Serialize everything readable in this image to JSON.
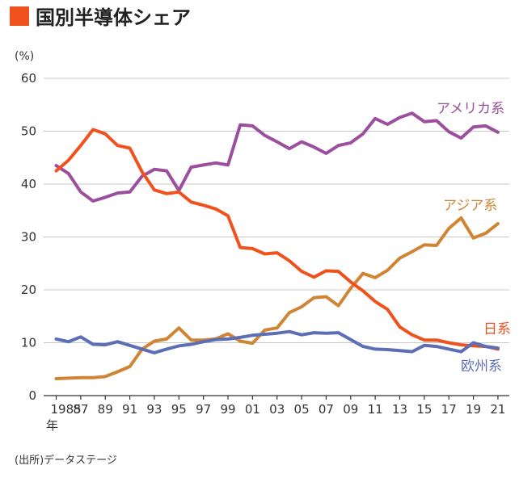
{
  "chart_data": {
    "type": "line",
    "title": "国別半導体シェア",
    "unit_label": "(%)",
    "source": "(出所)データステージ",
    "ylim": [
      0,
      60
    ],
    "y_ticks": [
      "0",
      "10",
      "20",
      "30",
      "40",
      "50",
      "60"
    ],
    "x": [
      1985,
      1986,
      1987,
      1988,
      1989,
      1990,
      1991,
      1992,
      1993,
      1994,
      1995,
      1996,
      1997,
      1998,
      1999,
      2000,
      2001,
      2002,
      2003,
      2004,
      2005,
      2006,
      2007,
      2008,
      2009,
      2010,
      2011,
      2012,
      2013,
      2014,
      2015,
      2016,
      2017,
      2018,
      2019,
      2020,
      2021
    ],
    "x_tick_labels": [
      {
        "x": 1985,
        "label": "1985"
      },
      {
        "x": 1987,
        "label": "87"
      },
      {
        "x": 1989,
        "label": "89"
      },
      {
        "x": 1991,
        "label": "91"
      },
      {
        "x": 1993,
        "label": "93"
      },
      {
        "x": 1995,
        "label": "95"
      },
      {
        "x": 1997,
        "label": "97"
      },
      {
        "x": 1999,
        "label": "99"
      },
      {
        "x": 2001,
        "label": "01"
      },
      {
        "x": 2003,
        "label": "03"
      },
      {
        "x": 2005,
        "label": "05"
      },
      {
        "x": 2007,
        "label": "07"
      },
      {
        "x": 2009,
        "label": "09"
      },
      {
        "x": 2011,
        "label": "11"
      },
      {
        "x": 2013,
        "label": "13"
      },
      {
        "x": 2015,
        "label": "15"
      },
      {
        "x": 2017,
        "label": "17"
      },
      {
        "x": 2019,
        "label": "19"
      },
      {
        "x": 2021,
        "label": "21"
      }
    ],
    "x_unit": "年",
    "grid": true,
    "series": [
      {
        "name": "アメリカ系",
        "color": "#9b4f9e",
        "values": [
          43.5,
          42,
          38.5,
          36.8,
          37.5,
          38.3,
          38.5,
          41.5,
          42.8,
          42.5,
          38.8,
          43.2,
          43.6,
          44,
          43.6,
          51.2,
          51,
          49.2,
          48,
          46.7,
          48,
          47,
          45.8,
          47.3,
          47.8,
          49.5,
          52.4,
          51.3,
          52.6,
          53.4,
          51.8,
          52,
          49.9,
          48.7,
          50.8,
          51,
          49.8
        ]
      },
      {
        "name": "アジア系",
        "color": "#d08535",
        "values": [
          3.2,
          3.3,
          3.4,
          3.4,
          3.6,
          4.5,
          5.5,
          8.8,
          10.3,
          10.7,
          12.8,
          10.5,
          10.5,
          10.7,
          11.7,
          10.3,
          9.9,
          12.4,
          12.8,
          15.7,
          16.8,
          18.5,
          18.7,
          17,
          20.3,
          23.1,
          22.3,
          23.7,
          26,
          27.2,
          28.5,
          28.4,
          31.6,
          33.6,
          29.8,
          30.7,
          32.5
        ]
      },
      {
        "name": "日系",
        "color": "#f0521e",
        "values": [
          42.5,
          44.5,
          47.3,
          50.3,
          49.5,
          47.3,
          46.8,
          42.3,
          38.9,
          38.2,
          38.5,
          36.6,
          36,
          35.3,
          34,
          28,
          27.8,
          26.8,
          27,
          25.5,
          23.5,
          22.4,
          23.6,
          23.5,
          21.5,
          19.8,
          17.8,
          16.3,
          13,
          11.5,
          10.5,
          10.5,
          10,
          9.6,
          9.4,
          9.3,
          8.8
        ]
      },
      {
        "name": "欧州系",
        "color": "#5b6eb6",
        "values": [
          10.7,
          10.2,
          11.1,
          9.7,
          9.6,
          10.2,
          9.5,
          8.8,
          8.1,
          8.8,
          9.4,
          9.7,
          10.2,
          10.6,
          10.7,
          11,
          11.4,
          11.6,
          11.8,
          12.1,
          11.5,
          11.9,
          11.8,
          11.9,
          10.6,
          9.3,
          8.8,
          8.7,
          8.5,
          8.3,
          9.5,
          9.3,
          8.8,
          8.3,
          10,
          9.3,
          9
        ]
      }
    ]
  }
}
